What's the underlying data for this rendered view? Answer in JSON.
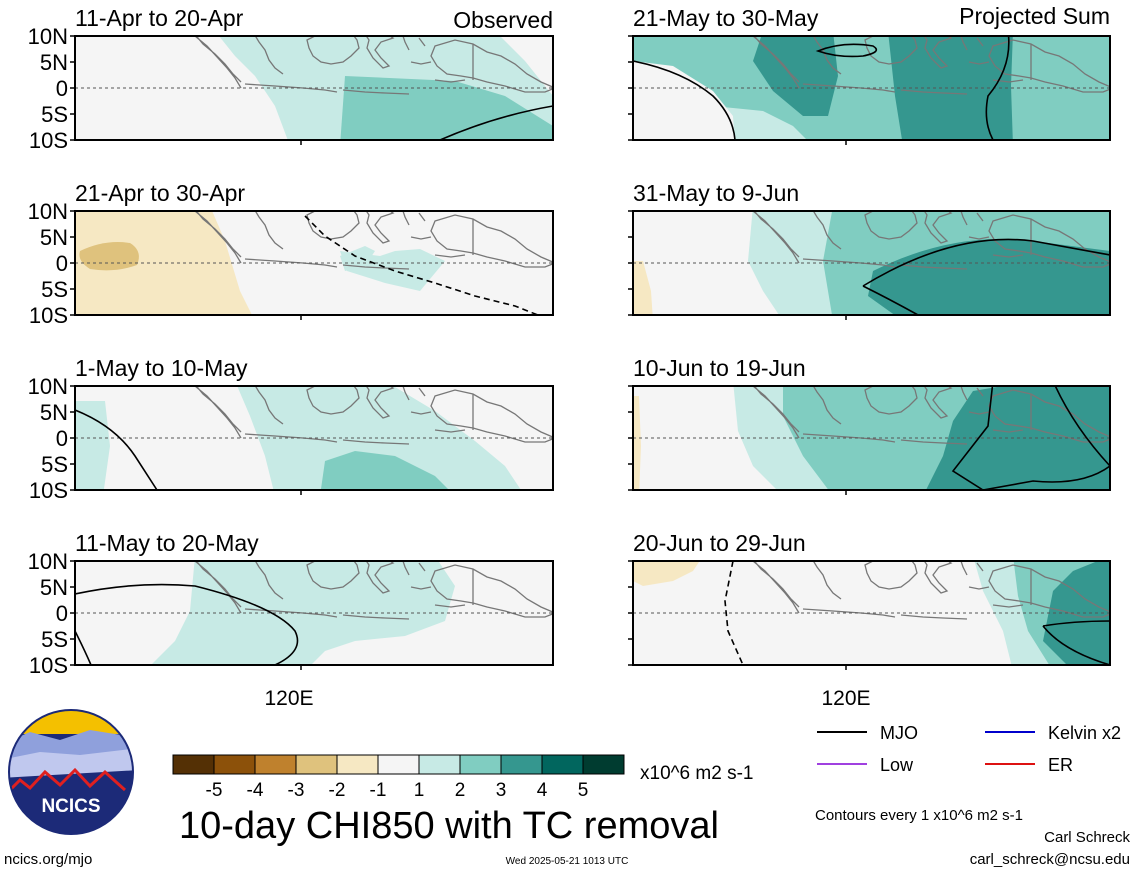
{
  "figure": {
    "title": "10-day CHI850 with TC removal",
    "observed_label": "Observed",
    "projected_label": "Projected Sum",
    "x_tick_label": "120E",
    "units": "x10^6 m2 s-1",
    "contour_note": "Contours every 1 x10^6 m2 s-1",
    "author": "Carl Schreck",
    "email": "carl_schreck@ncsu.edu",
    "site": "ncics.org/mjo",
    "timestamp": "Wed 2025-05-21 1013 UTC",
    "logo_text": "NCICS"
  },
  "colors": {
    "grey_fill": "#f5f5f5",
    "contour": "#000000",
    "land_outline": "#777777",
    "mjo": "#000000",
    "low": "#a040e0",
    "kelvin": "#0000cc",
    "er": "#dd1111"
  },
  "colorbar": {
    "colors": [
      "#543005",
      "#8c510a",
      "#bf812d",
      "#dfc27d",
      "#f6e8c3",
      "#f5f5f5",
      "#c7eae5",
      "#80cdc1",
      "#35978f",
      "#01665e",
      "#003c30"
    ],
    "labels": [
      "-5",
      "-4",
      "-3",
      "-2",
      "-1",
      "1",
      "2",
      "3",
      "4",
      "5"
    ]
  },
  "legend": [
    {
      "name": "MJO",
      "color": "#000000"
    },
    {
      "name": "Kelvin x2",
      "color": "#0000cc"
    },
    {
      "name": "Low",
      "color": "#a040e0"
    },
    {
      "name": "ER",
      "color": "#dd1111"
    }
  ],
  "chart_data": {
    "type": "heatmap",
    "variable": "CHI850",
    "yticks": [
      "10N",
      "5N",
      "0",
      "5S",
      "10S"
    ],
    "ylim": [
      -10,
      10
    ],
    "xticks": [
      "120E"
    ],
    "color_levels": [
      -5,
      -4,
      -3,
      -2,
      -1,
      1,
      2,
      3,
      4,
      5
    ],
    "panels": [
      {
        "id": "obs-1",
        "title": "11-Apr to 20-Apr",
        "column": "Observed"
      },
      {
        "id": "obs-2",
        "title": "21-Apr to 30-Apr",
        "column": "Observed"
      },
      {
        "id": "obs-3",
        "title": "1-May to 10-May",
        "column": "Observed"
      },
      {
        "id": "obs-4",
        "title": "11-May to 20-May",
        "column": "Observed"
      },
      {
        "id": "proj-1",
        "title": "21-May to 30-May",
        "column": "Projected Sum"
      },
      {
        "id": "proj-2",
        "title": "31-May to 9-Jun",
        "column": "Projected Sum"
      },
      {
        "id": "proj-3",
        "title": "10-Jun to 19-Jun",
        "column": "Projected Sum"
      },
      {
        "id": "proj-4",
        "title": "20-Jun to 29-Jun",
        "column": "Projected Sum"
      }
    ]
  }
}
